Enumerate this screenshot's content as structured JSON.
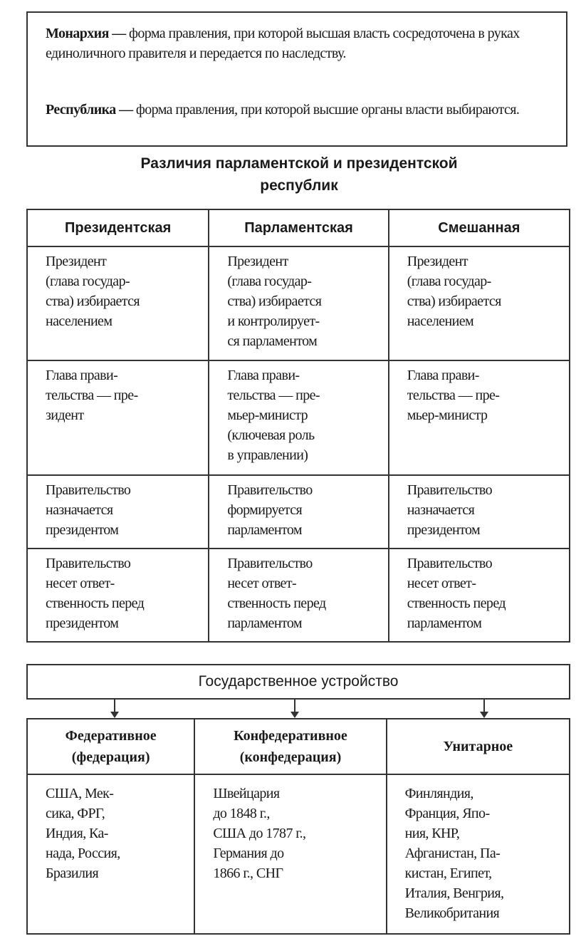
{
  "definitions": {
    "monarchy_term": "Монархия —",
    "monarchy_text": " форма правления, при которой высшая власть сосредоточена в руках единоличного правителя и передается по наследству.",
    "republic_term": "Республика —",
    "republic_text": " форма правления, при которой высшие органы власти выбираются."
  },
  "republics": {
    "title": "Различия парламентской и президентской\nреспублик",
    "headers": [
      "Президентская",
      "Парламентская",
      "Смешанная"
    ],
    "rows": [
      [
        "Президент\n(глава государ-\nства) избирается\nнаселением",
        "Президент\n(глава государ-\nства) избирается\nи контролирует-\nся парламентом",
        "Президент\n(глава государ-\nства) избирается\nнаселением"
      ],
      [
        "Глава прави-\nтельства — пре-\nзидент",
        "Глава прави-\nтельства — пре-\nмьер-министр\n(ключевая роль\nв управлении)",
        "Глава прави-\nтельства — пре-\nмьер-министр"
      ],
      [
        "Правительство\nназначается\nпрезидентом",
        "Правительство\nформируется\nпарламентом",
        "Правительство\nназначается\nпрезидентом"
      ],
      [
        "Правительство\nнесет ответ-\nственность перед\nпрезидентом",
        "Правительство\nнесет ответ-\nственность перед\nпарламентом",
        "Правительство\nнесет ответ-\nственность перед\nпарламентом"
      ]
    ]
  },
  "structure": {
    "title": "Государственное устройство",
    "headers": [
      "Федеративное\n(федерация)",
      "Конфедеративное\n(конфедерация)",
      "Унитарное"
    ],
    "cells": [
      "США, Мек-\nсика, ФРГ,\nИндия, Ка-\nнада, Россия,\nБразилия",
      "Швейцария\nдо 1848 г.,\nСША до 1787 г.,\nГермания до\n1866 г., СНГ",
      "Финляндия,\nФранция, Япо-\nния, КНР,\nАфганистан, Па-\nкистан, Египет,\nИталия, Венгрия,\nВеликобритания"
    ]
  }
}
